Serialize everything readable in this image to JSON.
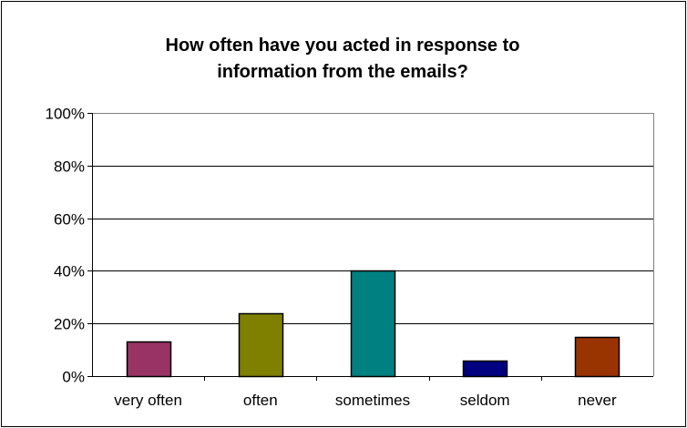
{
  "chart_data": {
    "type": "bar",
    "title": "How often have you acted in response to\ninformation from the emails?",
    "xlabel": "",
    "ylabel": "",
    "categories": [
      "very often",
      "often",
      "sometimes",
      "seldom",
      "never"
    ],
    "values": [
      13,
      24,
      40,
      6,
      15
    ],
    "unit": "%",
    "ylim": [
      0,
      100
    ],
    "yticks": [
      "0%",
      "20%",
      "40%",
      "60%",
      "80%",
      "100%"
    ],
    "ytick_values": [
      0,
      20,
      40,
      60,
      80,
      100
    ],
    "grid": true,
    "legend": "none",
    "colors": [
      "#993366",
      "#808000",
      "#008080",
      "#000080",
      "#993300"
    ],
    "plot_background": "#ffffff",
    "gridline_color": "#000000",
    "axis_border_color": "#808080"
  }
}
